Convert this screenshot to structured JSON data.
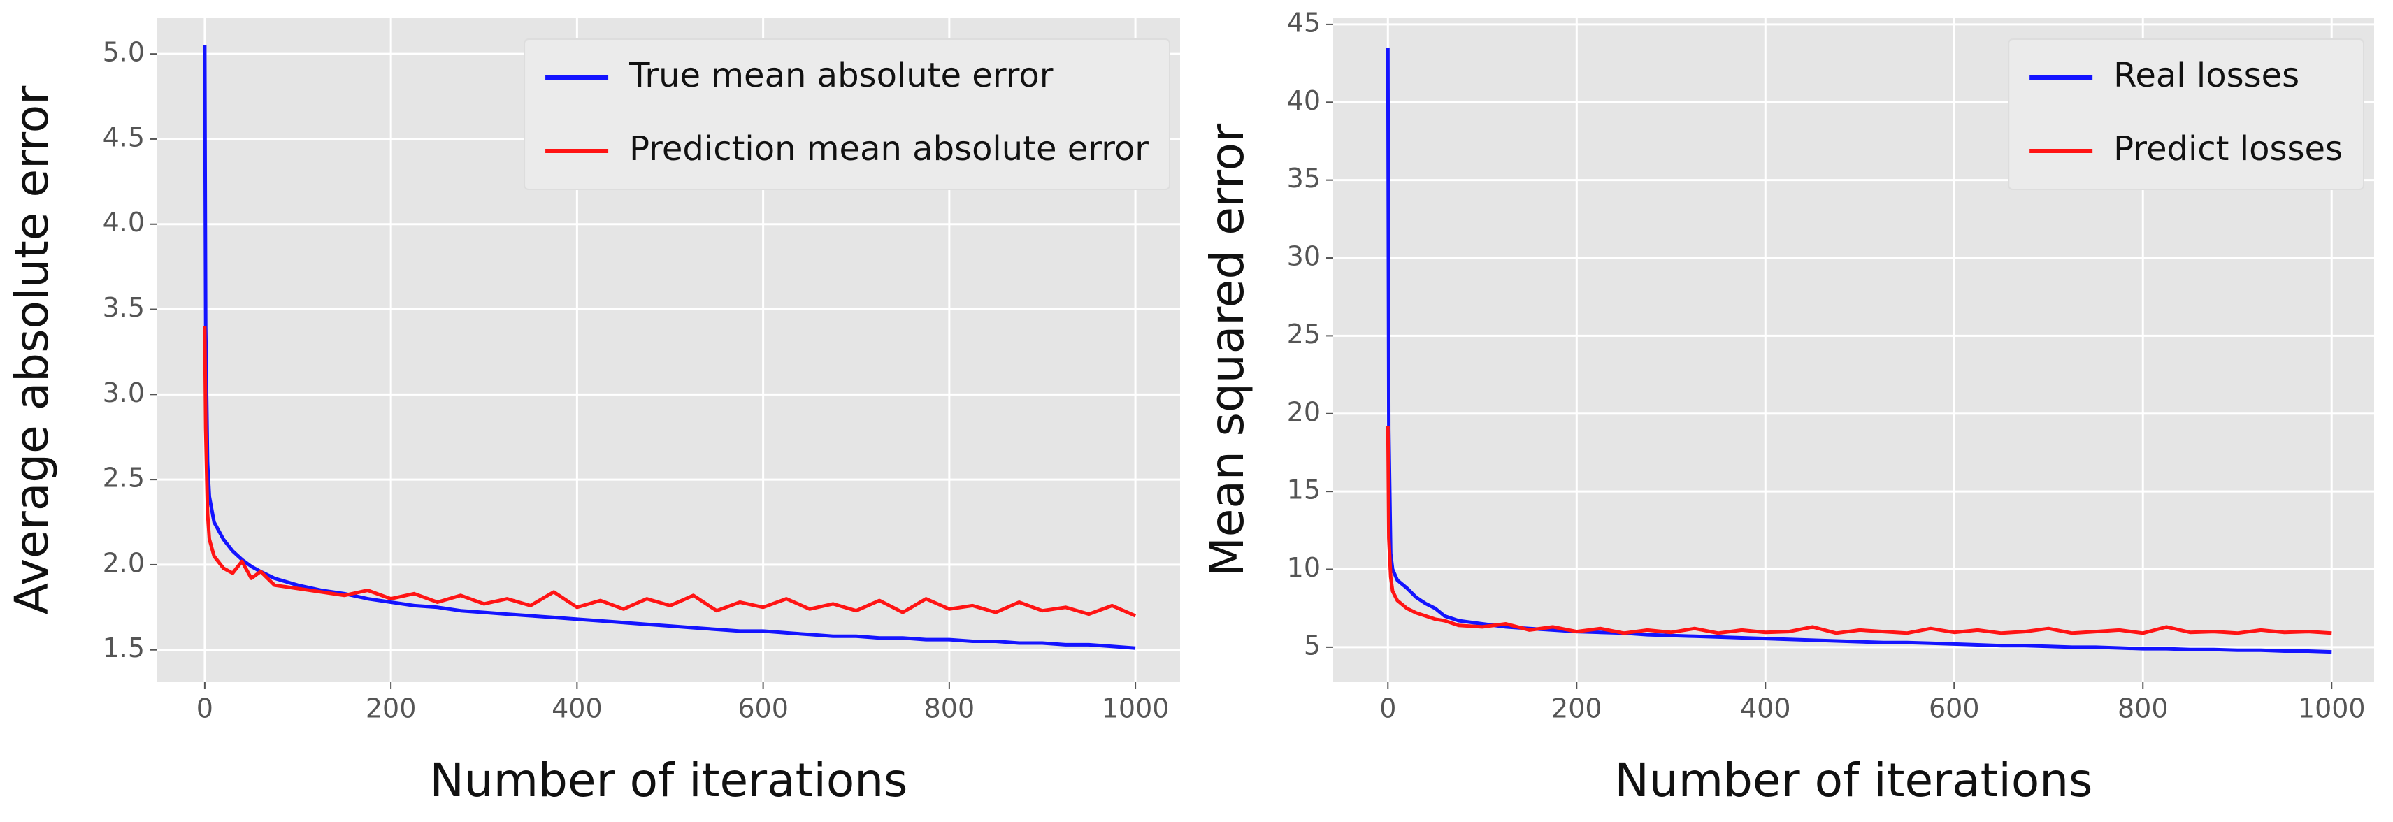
{
  "chart_data": [
    {
      "type": "line",
      "y_label": "Average absolute error",
      "x_label": "Number of iterations",
      "x": [
        0,
        1,
        3,
        5,
        10,
        20,
        30,
        40,
        50,
        60,
        75,
        100,
        125,
        150,
        175,
        200,
        225,
        250,
        275,
        300,
        325,
        350,
        375,
        400,
        425,
        450,
        475,
        500,
        525,
        550,
        575,
        600,
        625,
        650,
        675,
        700,
        725,
        750,
        775,
        800,
        825,
        850,
        875,
        900,
        925,
        950,
        975,
        1000
      ],
      "series": [
        {
          "name": "True mean absolute error",
          "color": "#1414ff",
          "values": [
            5.05,
            3.4,
            2.6,
            2.4,
            2.25,
            2.15,
            2.08,
            2.03,
            1.99,
            1.96,
            1.92,
            1.88,
            1.85,
            1.83,
            1.8,
            1.78,
            1.76,
            1.75,
            1.73,
            1.72,
            1.71,
            1.7,
            1.69,
            1.68,
            1.67,
            1.66,
            1.65,
            1.64,
            1.63,
            1.62,
            1.61,
            1.61,
            1.6,
            1.59,
            1.58,
            1.58,
            1.57,
            1.57,
            1.56,
            1.56,
            1.55,
            1.55,
            1.54,
            1.54,
            1.53,
            1.53,
            1.52,
            1.51
          ]
        },
        {
          "name": "Prediction mean absolute error",
          "color": "#ff1414",
          "values": [
            3.4,
            2.8,
            2.3,
            2.15,
            2.05,
            1.98,
            1.95,
            2.02,
            1.92,
            1.96,
            1.88,
            1.86,
            1.84,
            1.82,
            1.85,
            1.8,
            1.83,
            1.78,
            1.82,
            1.77,
            1.8,
            1.76,
            1.84,
            1.75,
            1.79,
            1.74,
            1.8,
            1.76,
            1.82,
            1.73,
            1.78,
            1.75,
            1.8,
            1.74,
            1.77,
            1.73,
            1.79,
            1.72,
            1.8,
            1.74,
            1.76,
            1.72,
            1.78,
            1.73,
            1.75,
            1.71,
            1.76,
            1.7
          ]
        }
      ],
      "xlim": [
        -51,
        1048
      ],
      "ylim": [
        1.31,
        5.21
      ],
      "xticks": [
        0,
        200,
        400,
        600,
        800,
        1000
      ],
      "yticks": [
        1.5,
        {
          "value": 2,
          "label": "2.0"
        },
        2.5,
        {
          "value": 3,
          "label": "3.0"
        },
        3.5,
        {
          "value": 4,
          "label": "4.0"
        },
        4.5,
        {
          "value": 5,
          "label": "5.0"
        }
      ],
      "grid": true,
      "legend": "upper right"
    },
    {
      "type": "line",
      "y_label": "Mean squared error",
      "x_label": "Number of iterations",
      "x": [
        0,
        1,
        3,
        5,
        10,
        20,
        30,
        40,
        50,
        60,
        75,
        100,
        125,
        150,
        175,
        200,
        225,
        250,
        275,
        300,
        325,
        350,
        375,
        400,
        425,
        450,
        475,
        500,
        525,
        550,
        575,
        600,
        625,
        650,
        675,
        700,
        725,
        750,
        775,
        800,
        825,
        850,
        875,
        900,
        925,
        950,
        975,
        1000
      ],
      "series": [
        {
          "name": "Real losses",
          "color": "#1414ff",
          "values": [
            43.5,
            19,
            11,
            10,
            9.3,
            8.8,
            8.2,
            7.8,
            7.5,
            7.0,
            6.7,
            6.5,
            6.3,
            6.2,
            6.1,
            6.0,
            5.95,
            5.9,
            5.8,
            5.75,
            5.7,
            5.65,
            5.6,
            5.55,
            5.5,
            5.45,
            5.4,
            5.35,
            5.3,
            5.3,
            5.25,
            5.2,
            5.15,
            5.1,
            5.1,
            5.05,
            5.0,
            5.0,
            4.95,
            4.9,
            4.9,
            4.85,
            4.85,
            4.8,
            4.8,
            4.75,
            4.75,
            4.7
          ]
        },
        {
          "name": "Predict losses",
          "color": "#ff1414",
          "values": [
            19.2,
            12,
            9.5,
            8.6,
            8.0,
            7.5,
            7.2,
            7.0,
            6.8,
            6.7,
            6.4,
            6.3,
            6.5,
            6.1,
            6.3,
            6.0,
            6.2,
            5.9,
            6.1,
            5.95,
            6.2,
            5.9,
            6.1,
            5.95,
            6.0,
            6.3,
            5.9,
            6.1,
            6.0,
            5.9,
            6.2,
            5.95,
            6.1,
            5.9,
            6.0,
            6.2,
            5.9,
            6.0,
            6.1,
            5.9,
            6.3,
            5.95,
            6.0,
            5.9,
            6.1,
            5.95,
            6.0,
            5.9
          ]
        }
      ],
      "xlim": [
        -58,
        1045
      ],
      "ylim": [
        2.75,
        45.4
      ],
      "xticks": [
        0,
        200,
        400,
        600,
        800,
        1000
      ],
      "yticks": [
        5,
        10,
        15,
        20,
        25,
        30,
        35,
        40,
        45
      ],
      "grid": true,
      "legend": "upper right"
    }
  ]
}
